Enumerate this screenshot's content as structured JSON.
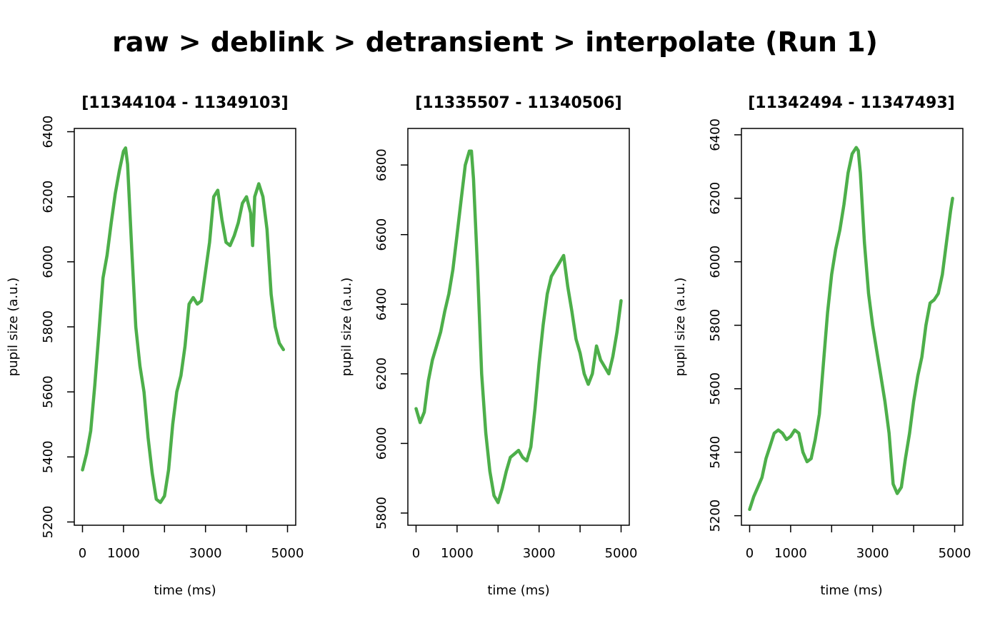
{
  "figure": {
    "title": "raw > deblink > detransient > interpolate (Run 1)"
  },
  "chart_data": [
    {
      "type": "line",
      "title": "[11344104 - 11349103]",
      "xlabel": "time (ms)",
      "ylabel": "pupil size (a.u.)",
      "xlim": [
        -200,
        5200
      ],
      "ylim": [
        5190,
        6410
      ],
      "xticks": [
        0,
        1000,
        2000,
        3000,
        4000,
        5000
      ],
      "xtick_labels": [
        "0",
        "1000",
        "",
        "3000",
        "",
        "5000"
      ],
      "yticks": [
        5200,
        5400,
        5600,
        5800,
        6000,
        6200,
        6400
      ],
      "ytick_labels": [
        "5200",
        "5400",
        "5600",
        "5800",
        "6000",
        "6200",
        "6400"
      ],
      "series_color": "#4daf4a",
      "series": [
        {
          "x": [
            0,
            100,
            200,
            300,
            400,
            500,
            600,
            700,
            800,
            900,
            1000,
            1050,
            1100,
            1200,
            1300,
            1400,
            1500,
            1600,
            1700,
            1800,
            1900,
            2000,
            2100,
            2200,
            2300,
            2400,
            2500,
            2600,
            2700,
            2800,
            2900,
            3000,
            3100,
            3200,
            3300,
            3400,
            3500,
            3600,
            3700,
            3800,
            3900,
            4000,
            4100,
            4150,
            4200,
            4300,
            4400,
            4500,
            4600,
            4700,
            4800,
            4900
          ],
          "y": [
            5360,
            5410,
            5480,
            5620,
            5780,
            5950,
            6020,
            6120,
            6210,
            6280,
            6340,
            6350,
            6300,
            6040,
            5800,
            5680,
            5600,
            5460,
            5350,
            5270,
            5260,
            5280,
            5360,
            5500,
            5600,
            5650,
            5740,
            5870,
            5890,
            5870,
            5880,
            5970,
            6060,
            6200,
            6220,
            6130,
            6060,
            6050,
            6080,
            6120,
            6180,
            6200,
            6150,
            6050,
            6200,
            6240,
            6200,
            6100,
            5900,
            5800,
            5750,
            5730
          ]
        }
      ]
    },
    {
      "type": "line",
      "title": "[11335507 - 11340506]",
      "xlabel": "time (ms)",
      "ylabel": "pupil size (a.u.)",
      "xlim": [
        -200,
        5200
      ],
      "ylim": [
        5765,
        6905
      ],
      "xticks": [
        0,
        1000,
        2000,
        3000,
        4000,
        5000
      ],
      "xtick_labels": [
        "0",
        "1000",
        "",
        "3000",
        "",
        "5000"
      ],
      "yticks": [
        5800,
        6000,
        6200,
        6400,
        6600,
        6800
      ],
      "ytick_labels": [
        "5800",
        "6000",
        "6200",
        "6400",
        "6600",
        "6800"
      ],
      "series_color": "#4daf4a",
      "series": [
        {
          "x": [
            0,
            100,
            200,
            300,
            400,
            500,
            600,
            700,
            800,
            900,
            1000,
            1100,
            1200,
            1300,
            1350,
            1400,
            1500,
            1600,
            1700,
            1800,
            1900,
            2000,
            2100,
            2200,
            2300,
            2400,
            2500,
            2600,
            2700,
            2800,
            2900,
            3000,
            3100,
            3200,
            3300,
            3400,
            3500,
            3600,
            3700,
            3800,
            3900,
            4000,
            4100,
            4200,
            4300,
            4400,
            4500,
            4600,
            4700,
            4800,
            4900,
            5000
          ],
          "y": [
            6100,
            6060,
            6090,
            6180,
            6240,
            6280,
            6320,
            6380,
            6430,
            6500,
            6600,
            6700,
            6800,
            6840,
            6840,
            6760,
            6500,
            6200,
            6030,
            5920,
            5850,
            5830,
            5870,
            5920,
            5960,
            5970,
            5980,
            5960,
            5950,
            5990,
            6100,
            6230,
            6340,
            6430,
            6480,
            6500,
            6520,
            6540,
            6450,
            6380,
            6300,
            6260,
            6200,
            6170,
            6200,
            6280,
            6240,
            6220,
            6200,
            6250,
            6320,
            6410
          ]
        }
      ]
    },
    {
      "type": "line",
      "title": "[11342494 - 11347493]",
      "xlabel": "time (ms)",
      "ylabel": "pupil size (a.u.)",
      "xlim": [
        -200,
        5200
      ],
      "ylim": [
        5170,
        6420
      ],
      "xticks": [
        0,
        1000,
        2000,
        3000,
        4000,
        5000
      ],
      "xtick_labels": [
        "0",
        "1000",
        "",
        "3000",
        "",
        "5000"
      ],
      "yticks": [
        5200,
        5400,
        5600,
        5800,
        6000,
        6200,
        6400
      ],
      "ytick_labels": [
        "5200",
        "5400",
        "5600",
        "5800",
        "6000",
        "6200",
        "6400"
      ],
      "series_color": "#4daf4a",
      "series": [
        {
          "x": [
            0,
            100,
            200,
            300,
            400,
            500,
            600,
            700,
            800,
            900,
            1000,
            1100,
            1200,
            1300,
            1400,
            1500,
            1600,
            1700,
            1800,
            1900,
            2000,
            2100,
            2200,
            2300,
            2400,
            2500,
            2600,
            2650,
            2700,
            2800,
            2900,
            3000,
            3100,
            3200,
            3300,
            3400,
            3500,
            3600,
            3700,
            3800,
            3900,
            4000,
            4100,
            4200,
            4300,
            4400,
            4500,
            4600,
            4700,
            4800,
            4900,
            4950
          ],
          "y": [
            5220,
            5260,
            5290,
            5320,
            5380,
            5420,
            5460,
            5470,
            5460,
            5440,
            5450,
            5470,
            5460,
            5400,
            5370,
            5380,
            5440,
            5520,
            5680,
            5840,
            5960,
            6040,
            6100,
            6180,
            6280,
            6340,
            6360,
            6350,
            6280,
            6060,
            5900,
            5800,
            5720,
            5640,
            5560,
            5460,
            5300,
            5270,
            5290,
            5380,
            5460,
            5560,
            5640,
            5700,
            5800,
            5870,
            5880,
            5900,
            5960,
            6060,
            6160,
            6200
          ]
        }
      ]
    }
  ]
}
